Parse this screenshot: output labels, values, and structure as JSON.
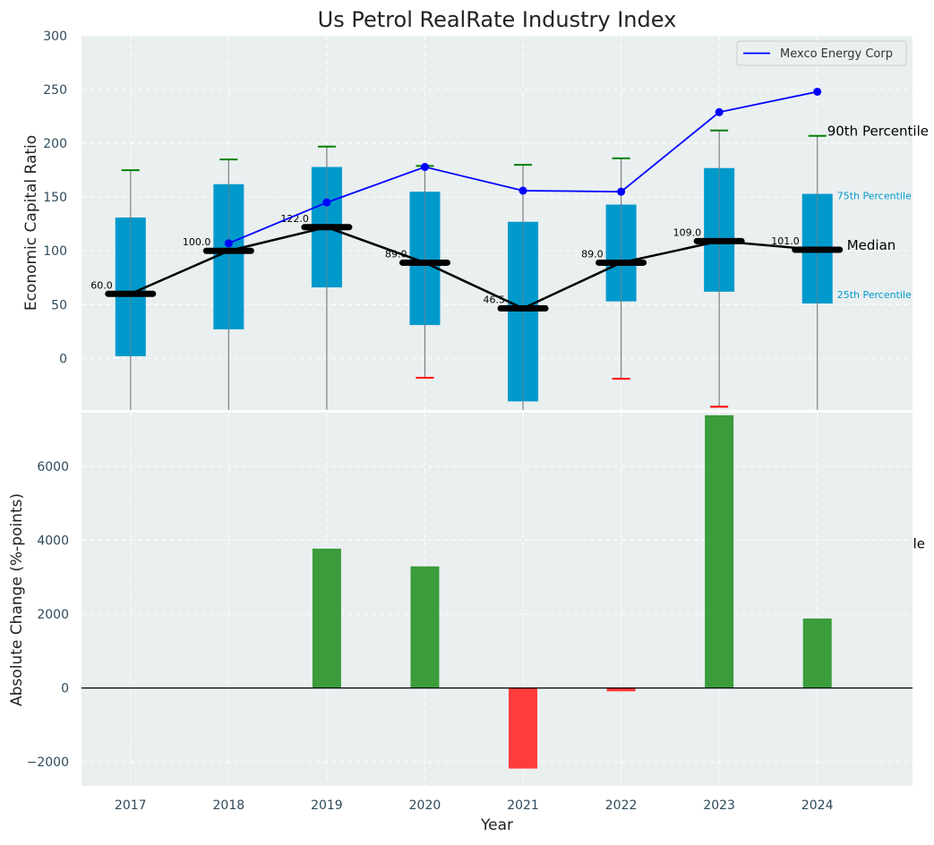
{
  "colors": {
    "panel_bg": "#eaeff0",
    "grid": "#ffffff",
    "box": "#0099cc",
    "whisker": "#808080",
    "cap_top": "#008000",
    "cap_low": "#ff0000",
    "median_line": "#000000",
    "company_line": "#0000ff",
    "bar_up": "#3a9c3a",
    "bar_down": "#ff3b3b",
    "tick_text": "#2f4a5c"
  },
  "chart_data": [
    {
      "type": "box",
      "title": "Us Petrol RealRate Industry Index",
      "ylabel": "Economic Capital Ratio",
      "xlabel": "",
      "ylim": [
        -48,
        300
      ],
      "xlim": [
        2016.5,
        2024.97
      ],
      "yticks": [
        0,
        50,
        100,
        150,
        200,
        250,
        300
      ],
      "grid": true,
      "legend": {
        "position": "top-right",
        "entries": [
          "Mexco Energy Corp"
        ]
      },
      "categories": [
        "2017",
        "2018",
        "2019",
        "2020",
        "2021",
        "2022",
        "2023",
        "2024"
      ],
      "boxes": [
        {
          "year": "2017",
          "q1": 2,
          "median": 60.0,
          "q3": 131,
          "whisker_low": -48,
          "whisker_high": 175,
          "low_cap": null,
          "median_label": "60.0"
        },
        {
          "year": "2018",
          "q1": 27,
          "median": 100.0,
          "q3": 162,
          "whisker_low": -48,
          "whisker_high": 185,
          "low_cap": null,
          "median_label": "100.0"
        },
        {
          "year": "2019",
          "q1": 66,
          "median": 122.0,
          "q3": 178,
          "whisker_low": -48,
          "whisker_high": 197,
          "low_cap": null,
          "median_label": "122.0"
        },
        {
          "year": "2020",
          "q1": 31,
          "median": 89.0,
          "q3": 155,
          "whisker_low": -18,
          "whisker_high": 179,
          "low_cap": -18,
          "median_label": "89.0"
        },
        {
          "year": "2021",
          "q1": -40,
          "median": 46.5,
          "q3": 127,
          "whisker_low": -48,
          "whisker_high": 180,
          "low_cap": null,
          "median_label": "46.5"
        },
        {
          "year": "2022",
          "q1": 53,
          "median": 89.0,
          "q3": 143,
          "whisker_low": -19,
          "whisker_high": 186,
          "low_cap": -19,
          "median_label": "89.0"
        },
        {
          "year": "2023",
          "q1": 62,
          "median": 109.0,
          "q3": 177,
          "whisker_low": -45,
          "whisker_high": 212,
          "low_cap": -45,
          "median_label": "109.0"
        },
        {
          "year": "2024",
          "q1": 51,
          "median": 101.0,
          "q3": 153,
          "whisker_low": -48,
          "whisker_high": 207,
          "low_cap": null,
          "median_label": "101.0"
        }
      ],
      "series": [
        {
          "name": "Mexco Energy Corp",
          "x": [
            "2018",
            "2019",
            "2020",
            "2021",
            "2022",
            "2023",
            "2024"
          ],
          "values": [
            107,
            145,
            178,
            156,
            155,
            229,
            248
          ]
        }
      ],
      "annotations": {
        "p90": {
          "text": "90th Percentile",
          "value": 207
        },
        "p75": {
          "text": "75th Percentile",
          "value": 148
        },
        "median": {
          "text": "Median",
          "value": 101
        },
        "p25": {
          "text": "25th Percentile",
          "value": 56
        }
      }
    },
    {
      "type": "bar",
      "title": "",
      "ylabel": "Absolute Change (%-points)",
      "xlabel": "Year",
      "ylim": [
        -2650,
        7450
      ],
      "xlim": [
        2016.5,
        2024.97
      ],
      "yticks": [
        -2000,
        0,
        2000,
        4000,
        6000
      ],
      "grid": true,
      "categories": [
        "2017",
        "2018",
        "2019",
        "2020",
        "2021",
        "2022",
        "2023",
        "2024"
      ],
      "values": [
        0,
        0,
        3770,
        3290,
        -2180,
        -90,
        7380,
        1880
      ],
      "annotations": {
        "clipped_text": "le",
        "value": 3900
      }
    }
  ]
}
